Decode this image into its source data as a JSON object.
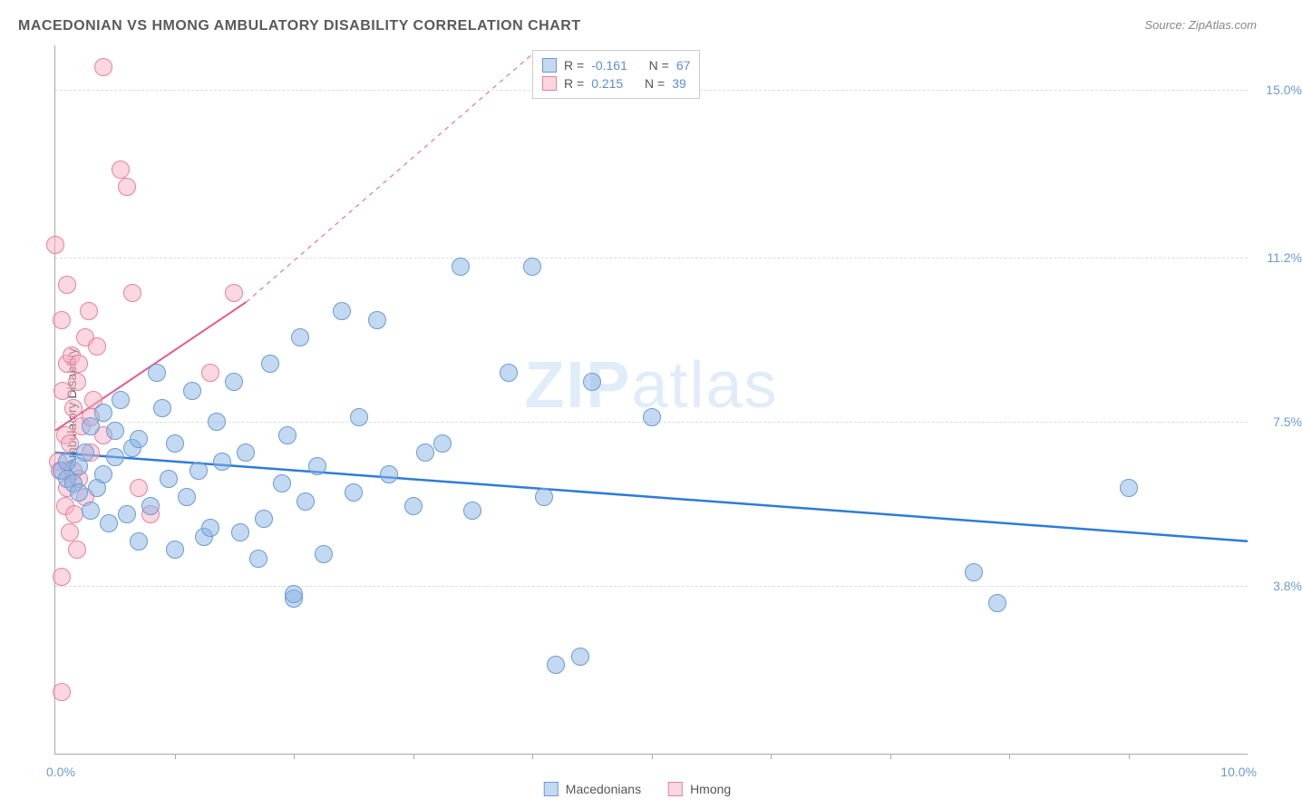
{
  "title": "MACEDONIAN VS HMONG AMBULATORY DISABILITY CORRELATION CHART",
  "source": "Source: ZipAtlas.com",
  "ylabel": "Ambulatory Disability",
  "watermark": {
    "bold": "ZIP",
    "light": "atlas"
  },
  "legend": [
    "Macedonians",
    "Hmong"
  ],
  "stats": {
    "r_label": "R =",
    "n_label": "N =",
    "series": [
      {
        "r": "-0.161",
        "n": "67"
      },
      {
        "r": "0.215",
        "n": "39"
      }
    ]
  },
  "xaxis": {
    "min": 0.0,
    "max": 10.0,
    "min_label": "0.0%",
    "max_label": "10.0%",
    "ticks": [
      1,
      2,
      3,
      4,
      5,
      6,
      7,
      8,
      9
    ]
  },
  "yaxis": {
    "min": 0.0,
    "max": 16.0,
    "ticks": [
      3.8,
      7.5,
      11.2,
      15.0
    ],
    "tick_labels": [
      "3.8%",
      "7.5%",
      "11.2%",
      "15.0%"
    ]
  },
  "colors": {
    "blue_fill": "rgba(135,180,230,0.5)",
    "blue_stroke": "#6b9bd1",
    "pink_fill": "rgba(245,175,195,0.5)",
    "pink_stroke": "#e8809f",
    "blue_line": "#2e7cd6",
    "pink_line": "#e85a8a",
    "grid": "#dddddd",
    "axis": "#aaaaaa",
    "tick_text": "#6b9bd1"
  },
  "marker_radius": 10,
  "trend_lines": {
    "blue": {
      "x1": 0.0,
      "y1": 6.8,
      "x2": 10.0,
      "y2": 4.8,
      "width": 2.5,
      "dash": ""
    },
    "pink_solid": {
      "x1": 0.0,
      "y1": 7.3,
      "x2": 1.6,
      "y2": 10.2,
      "width": 2,
      "dash": ""
    },
    "pink_dash": {
      "x1": 1.6,
      "y1": 10.2,
      "x2": 4.0,
      "y2": 15.8,
      "width": 1,
      "dash": "5,5"
    }
  },
  "series": {
    "blue": [
      [
        0.05,
        6.4
      ],
      [
        0.1,
        6.2
      ],
      [
        0.1,
        6.6
      ],
      [
        0.15,
        6.1
      ],
      [
        0.2,
        5.9
      ],
      [
        0.2,
        6.5
      ],
      [
        0.25,
        6.8
      ],
      [
        0.3,
        7.4
      ],
      [
        0.3,
        5.5
      ],
      [
        0.35,
        6.0
      ],
      [
        0.4,
        6.3
      ],
      [
        0.4,
        7.7
      ],
      [
        0.45,
        5.2
      ],
      [
        0.5,
        7.3
      ],
      [
        0.5,
        6.7
      ],
      [
        0.55,
        8.0
      ],
      [
        0.6,
        5.4
      ],
      [
        0.65,
        6.9
      ],
      [
        0.7,
        4.8
      ],
      [
        0.7,
        7.1
      ],
      [
        0.8,
        5.6
      ],
      [
        0.85,
        8.6
      ],
      [
        0.9,
        7.8
      ],
      [
        0.95,
        6.2
      ],
      [
        1.0,
        4.6
      ],
      [
        1.0,
        7.0
      ],
      [
        1.1,
        5.8
      ],
      [
        1.15,
        8.2
      ],
      [
        1.2,
        6.4
      ],
      [
        1.25,
        4.9
      ],
      [
        1.3,
        5.1
      ],
      [
        1.35,
        7.5
      ],
      [
        1.4,
        6.6
      ],
      [
        1.5,
        8.4
      ],
      [
        1.55,
        5.0
      ],
      [
        1.6,
        6.8
      ],
      [
        1.7,
        4.4
      ],
      [
        1.75,
        5.3
      ],
      [
        1.8,
        8.8
      ],
      [
        1.9,
        6.1
      ],
      [
        1.95,
        7.2
      ],
      [
        2.0,
        3.5
      ],
      [
        2.0,
        3.6
      ],
      [
        2.05,
        9.4
      ],
      [
        2.1,
        5.7
      ],
      [
        2.2,
        6.5
      ],
      [
        2.25,
        4.5
      ],
      [
        2.4,
        10.0
      ],
      [
        2.5,
        5.9
      ],
      [
        2.55,
        7.6
      ],
      [
        2.7,
        9.8
      ],
      [
        2.8,
        6.3
      ],
      [
        3.0,
        5.6
      ],
      [
        3.1,
        6.8
      ],
      [
        3.25,
        7.0
      ],
      [
        3.4,
        11.0
      ],
      [
        3.5,
        5.5
      ],
      [
        3.8,
        8.6
      ],
      [
        4.0,
        11.0
      ],
      [
        4.1,
        5.8
      ],
      [
        4.2,
        2.0
      ],
      [
        4.4,
        2.2
      ],
      [
        4.5,
        8.4
      ],
      [
        5.0,
        7.6
      ],
      [
        7.7,
        4.1
      ],
      [
        7.9,
        3.4
      ],
      [
        9.0,
        6.0
      ]
    ],
    "pink": [
      [
        0.0,
        11.5
      ],
      [
        0.02,
        6.6
      ],
      [
        0.04,
        6.4
      ],
      [
        0.05,
        9.8
      ],
      [
        0.05,
        4.0
      ],
      [
        0.06,
        8.2
      ],
      [
        0.08,
        7.2
      ],
      [
        0.08,
        5.6
      ],
      [
        0.1,
        10.6
      ],
      [
        0.1,
        6.0
      ],
      [
        0.1,
        8.8
      ],
      [
        0.12,
        7.0
      ],
      [
        0.12,
        5.0
      ],
      [
        0.14,
        9.0
      ],
      [
        0.15,
        6.4
      ],
      [
        0.15,
        7.8
      ],
      [
        0.16,
        5.4
      ],
      [
        0.18,
        8.4
      ],
      [
        0.18,
        4.6
      ],
      [
        0.2,
        8.8
      ],
      [
        0.2,
        6.2
      ],
      [
        0.22,
        7.4
      ],
      [
        0.25,
        9.4
      ],
      [
        0.25,
        5.8
      ],
      [
        0.28,
        10.0
      ],
      [
        0.3,
        7.6
      ],
      [
        0.3,
        6.8
      ],
      [
        0.32,
        8.0
      ],
      [
        0.35,
        9.2
      ],
      [
        0.4,
        7.2
      ],
      [
        0.4,
        15.5
      ],
      [
        0.55,
        13.2
      ],
      [
        0.6,
        12.8
      ],
      [
        0.65,
        10.4
      ],
      [
        0.7,
        6.0
      ],
      [
        0.8,
        5.4
      ],
      [
        1.3,
        8.6
      ],
      [
        1.5,
        10.4
      ],
      [
        0.05,
        1.4
      ]
    ]
  }
}
